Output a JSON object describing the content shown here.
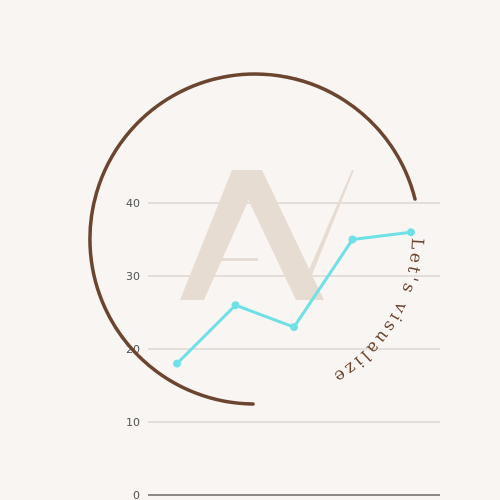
{
  "colors": {
    "background": "#f9f5f2",
    "ring": "#6b4530",
    "monogram": "#e6dcd2",
    "line": "#6ee0e6",
    "grid": "#cfc8c2",
    "axis": "#4a4a4a",
    "tagline": "#6b4530"
  },
  "logo": {
    "monogram": "AV",
    "tagline": "Let's visualize"
  },
  "chart_data": {
    "type": "line",
    "x": [
      1,
      2,
      3,
      4,
      5
    ],
    "series": [
      {
        "values": [
          18,
          26,
          23,
          35,
          36
        ]
      }
    ],
    "ylim": [
      0,
      40
    ],
    "yticks": [
      0,
      10,
      20,
      30,
      40
    ],
    "grid": true
  }
}
